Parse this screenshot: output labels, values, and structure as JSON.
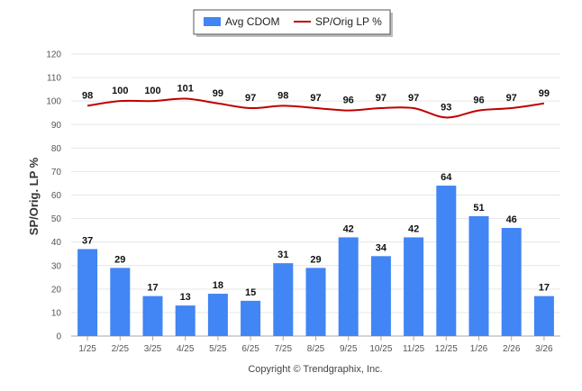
{
  "chart_data": {
    "type": "bar",
    "title": "",
    "xlabel": "",
    "ylabel": "SP/Orig. LP %",
    "ylim": [
      0,
      120
    ],
    "yticks": [
      0,
      10,
      20,
      30,
      40,
      50,
      60,
      70,
      80,
      90,
      100,
      110,
      120
    ],
    "grid": true,
    "legend_position": "top-center",
    "categories": [
      "1/25",
      "2/25",
      "3/25",
      "4/25",
      "5/25",
      "6/25",
      "7/25",
      "8/25",
      "9/25",
      "10/25",
      "11/25",
      "12/25",
      "1/26",
      "2/26",
      "3/26"
    ],
    "series": [
      {
        "name": "Avg CDOM",
        "kind": "bar",
        "color": "#4285f4",
        "values": [
          37,
          29,
          17,
          13,
          18,
          15,
          31,
          29,
          42,
          34,
          42,
          64,
          51,
          46,
          17
        ]
      },
      {
        "name": "SP/Orig LP %",
        "kind": "line",
        "color": "#c00000",
        "values": [
          98,
          100,
          100,
          101,
          99,
          97,
          98,
          97,
          96,
          97,
          97,
          93,
          96,
          97,
          99
        ]
      }
    ]
  },
  "footer": {
    "copyright": "Copyright © Trendgraphix, Inc."
  }
}
